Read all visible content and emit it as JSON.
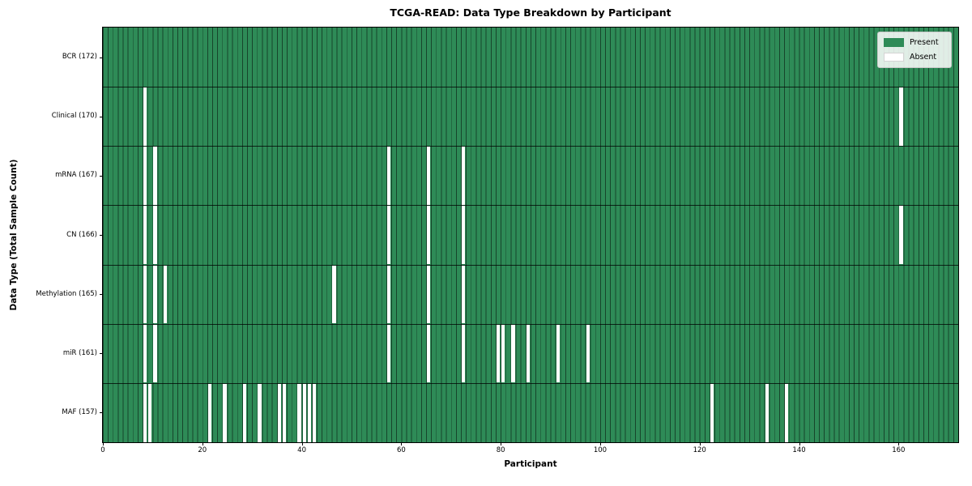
{
  "chart_data": {
    "type": "heatmap",
    "title": "TCGA-READ: Data Type Breakdown by Participant",
    "xlabel": "Participant",
    "ylabel": "Data Type (Total Sample Count)",
    "x_ticks": [
      0,
      20,
      40,
      60,
      80,
      100,
      120,
      140,
      160
    ],
    "xlim": [
      0,
      172
    ],
    "n_participants": 172,
    "grid": true,
    "colors": {
      "present": "#2e8b57",
      "absent": "#ffffff",
      "cell_edge": "rgba(0,0,0,0.5)"
    },
    "legend": {
      "position": "upper right",
      "entries": [
        {
          "label": "Present",
          "color": "#2e8b57"
        },
        {
          "label": "Absent",
          "color": "#ffffff"
        }
      ]
    },
    "rows": [
      {
        "label": "BCR (172)",
        "data_type": "BCR",
        "present_count": 172,
        "absent_participants": []
      },
      {
        "label": "Clinical (170)",
        "data_type": "Clinical",
        "present_count": 170,
        "absent_participants": [
          8,
          160
        ]
      },
      {
        "label": "mRNA (167)",
        "data_type": "mRNA",
        "present_count": 167,
        "absent_participants": [
          8,
          10,
          57,
          65,
          72
        ]
      },
      {
        "label": "CN (166)",
        "data_type": "CN",
        "present_count": 166,
        "absent_participants": [
          8,
          10,
          57,
          65,
          72,
          160
        ]
      },
      {
        "label": "Methylation (165)",
        "data_type": "Methylation",
        "present_count": 165,
        "absent_participants": [
          8,
          10,
          12,
          46,
          57,
          65,
          72
        ]
      },
      {
        "label": "miR (161)",
        "data_type": "miR",
        "present_count": 161,
        "absent_participants": [
          8,
          10,
          57,
          65,
          72,
          79,
          80,
          82,
          85,
          91,
          97
        ]
      },
      {
        "label": "MAF (157)",
        "data_type": "MAF",
        "present_count": 157,
        "absent_participants": [
          8,
          9,
          21,
          24,
          28,
          31,
          35,
          36,
          39,
          40,
          41,
          42,
          122,
          133,
          137
        ]
      }
    ]
  }
}
